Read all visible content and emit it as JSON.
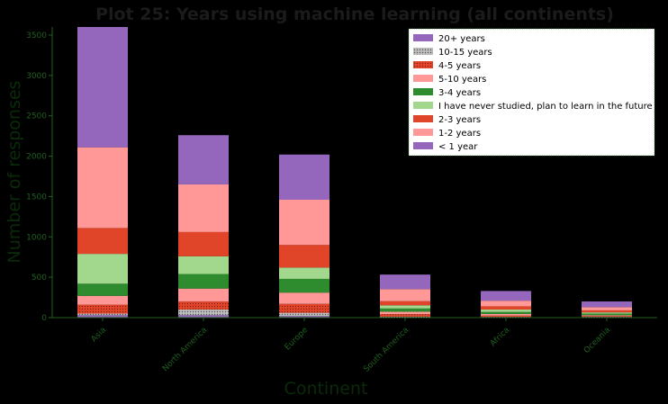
{
  "chart_data": {
    "type": "bar",
    "stacked": true,
    "title": "Plot 25: Years using machine learning (all continents)",
    "xlabel": "Continent",
    "ylabel": "Number of responses",
    "categories": [
      "Asia",
      "North America",
      "Europe",
      "South America",
      "Africa",
      "Oceania"
    ],
    "ylim": [
      0,
      3600
    ],
    "yticks": [
      0,
      500,
      1000,
      1500,
      2000,
      2500,
      3000,
      3500
    ],
    "legend_position": "upper right",
    "series": [
      {
        "name": "< 1 year",
        "color": "#9467bd",
        "hatch": false,
        "values": [
          1490,
          610,
          560,
          180,
          120,
          70
        ]
      },
      {
        "name": "1-2 years",
        "color": "#ff9896",
        "hatch": false,
        "values": [
          1000,
          590,
          560,
          150,
          70,
          40
        ]
      },
      {
        "name": "2-3 years",
        "color": "#e0452a",
        "hatch": false,
        "values": [
          320,
          300,
          280,
          50,
          40,
          25
        ]
      },
      {
        "name": "I have never studied, plan to learn in the future",
        "color": "#a2d88e",
        "hatch": false,
        "values": [
          370,
          220,
          140,
          40,
          30,
          15
        ]
      },
      {
        "name": "3-4 years",
        "color": "#2e8b2e",
        "hatch": false,
        "values": [
          150,
          180,
          170,
          40,
          25,
          20
        ]
      },
      {
        "name": "5-10 years",
        "color": "#ff9896",
        "hatch": false,
        "values": [
          110,
          160,
          140,
          30,
          20,
          10
        ]
      },
      {
        "name": "4-5 years",
        "color": "#e0452a",
        "hatch": true,
        "values": [
          110,
          100,
          110,
          30,
          15,
          10
        ]
      },
      {
        "name": "10-15 years",
        "color": "#bfbfbf",
        "hatch": true,
        "values": [
          20,
          70,
          40,
          8,
          5,
          5
        ]
      },
      {
        "name": "20+ years",
        "color": "#9467bd",
        "hatch": false,
        "values": [
          30,
          30,
          20,
          5,
          5,
          5
        ]
      }
    ],
    "legend_order": [
      "20+ years",
      "10-15 years",
      "4-5 years",
      "5-10 years",
      "3-4 years",
      "I have never studied, plan to learn in the future",
      "2-3 years",
      "1-2 years",
      "< 1 year"
    ]
  },
  "colors": {
    "background": "#000000",
    "plot_background": "#000000",
    "axis_text": "#1f5f1f",
    "legend_background": "#ffffff",
    "legend_border": "#2e8b2e"
  }
}
